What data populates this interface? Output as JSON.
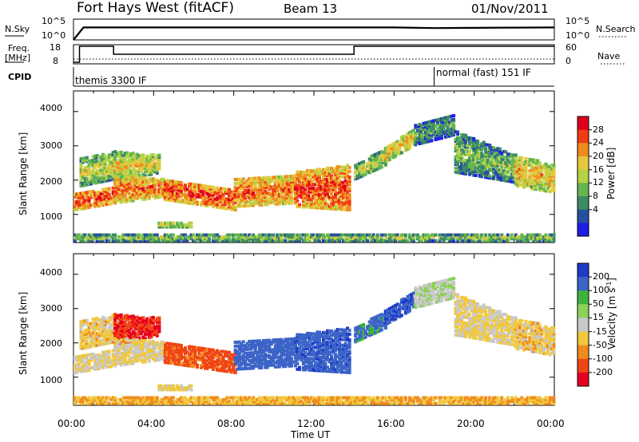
{
  "header": {
    "station": "Fort Hays West (fitACF)",
    "beam": "Beam 13",
    "date": "01/Nov/2011"
  },
  "sky_panel": {
    "left_label": "N.Sky",
    "right_label": "N.Search",
    "left_ticks": [
      "10^5",
      "10^0"
    ],
    "right_ticks": [
      "10^5",
      "10^0"
    ]
  },
  "freq_panel": {
    "left_label_line1": "Freq.",
    "left_label_line2": "[MHz]",
    "right_label": "Nave",
    "left_ticks": [
      "18",
      "8"
    ],
    "right_ticks": [
      "60",
      "0"
    ]
  },
  "cpid_panel": {
    "label": "CPID",
    "modes": [
      {
        "name": "themis 3300 IF",
        "start_hour": 0
      },
      {
        "name": "normal (fast) 151 IF",
        "start_hour": 18
      }
    ]
  },
  "x_axis": {
    "label": "Time UT",
    "ticks": [
      "00:00",
      "04:00",
      "08:00",
      "12:00",
      "16:00",
      "20:00",
      "00:00"
    ]
  },
  "power_colorbar": {
    "title": "Power [dB]",
    "ticks": [
      "28",
      "24",
      "20",
      "16",
      "12",
      "8",
      "4"
    ],
    "colors": [
      "#e0001e",
      "#f03c14",
      "#f08c1e",
      "#e6c83c",
      "#b4d246",
      "#64b450",
      "#3c8c64",
      "#2850a0",
      "#1e1ee6"
    ]
  },
  "velocity_colorbar": {
    "title_main": "Velocity [m s",
    "title_sup": "-1",
    "title_end": "]",
    "ticks": [
      "200",
      "100",
      "50",
      "15",
      "-15",
      "-50",
      "-100",
      "-200"
    ],
    "colors": [
      "#1e3cc8",
      "#3c64c8",
      "#3cb43c",
      "#8cd25a",
      "#c8c8c8",
      "#f0c83c",
      "#f08c1e",
      "#f04614",
      "#e6001e"
    ]
  },
  "chart_data": [
    {
      "type": "line",
      "title": "",
      "panel": "sky/search noise",
      "x": [
        0,
        0.5,
        2,
        4,
        6,
        8,
        10,
        12,
        14,
        16,
        18,
        20,
        22,
        24
      ],
      "series": [
        {
          "name": "N.Sky",
          "values": [
            1,
            1000,
            1000,
            1000,
            1000,
            1000,
            1000,
            1000,
            1000,
            1000,
            700,
            800,
            900,
            1000
          ]
        }
      ],
      "ylabel": "N.Sky",
      "yscale": "log",
      "ylim": [
        1,
        100000
      ]
    },
    {
      "type": "line",
      "title": "",
      "panel": "frequency / nave",
      "x": [
        0,
        0.3,
        0.3,
        2,
        2,
        14,
        14,
        24
      ],
      "series": [
        {
          "name": "Freq.",
          "values": [
            8,
            8,
            18,
            18,
            13,
            13,
            18,
            18
          ]
        },
        {
          "name": "Nave",
          "values": [
            12,
            12,
            12,
            12,
            12,
            12,
            12,
            12
          ]
        }
      ],
      "ylabel": "Freq. [MHz]",
      "ylim": [
        8,
        18
      ],
      "y2lim": [
        0,
        60
      ]
    },
    {
      "type": "heatmap",
      "title": "",
      "panel": "power",
      "xlabel": "",
      "ylabel": "Slant Range [km]",
      "xlim": [
        0,
        24
      ],
      "ylim": [
        180,
        4600
      ],
      "yticks": [
        1000,
        2000,
        3000,
        4000
      ],
      "colorbar": "Power [dB]",
      "crange": [
        0,
        32
      ]
    },
    {
      "type": "heatmap",
      "title": "",
      "panel": "velocity",
      "xlabel": "Time UT",
      "ylabel": "Slant Range [km]",
      "xlim": [
        0,
        24
      ],
      "ylim": [
        180,
        4600
      ],
      "yticks": [
        1000,
        2000,
        3000,
        4000
      ],
      "colorbar": "Velocity [m s-1]",
      "crange": [
        -250,
        250
      ]
    }
  ]
}
